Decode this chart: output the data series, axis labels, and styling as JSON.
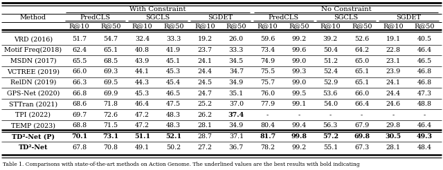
{
  "methods": [
    "VRD (2016)",
    "Motif Freq(2018)",
    "MSDN (2017)",
    "VCTREE (2019)",
    "RelDN (2019)",
    "GPS-Net (2020)",
    "STTran (2021)",
    "TPI (2022)",
    "TEMP (2023)",
    "TD²-Net (P)",
    "TD²-Net"
  ],
  "data": [
    [
      "51.7",
      "54.7",
      "32.4",
      "33.3",
      "19.2",
      "26.0",
      "59.6",
      "99.2",
      "39.2",
      "52.6",
      "19.1",
      "40.5"
    ],
    [
      "62.4",
      "65.1",
      "40.8",
      "41.9",
      "23.7",
      "33.3",
      "73.4",
      "99.6",
      "50.4",
      "64.2",
      "22.8",
      "46.4"
    ],
    [
      "65.5",
      "68.5",
      "43.9",
      "45.1",
      "24.1",
      "34.5",
      "74.9",
      "99.0",
      "51.2",
      "65.0",
      "23.1",
      "46.5"
    ],
    [
      "66.0",
      "69.3",
      "44.1",
      "45.3",
      "24.4",
      "34.7",
      "75.5",
      "99.3",
      "52.4",
      "65.1",
      "23.9",
      "46.8"
    ],
    [
      "66.3",
      "69.5",
      "44.3",
      "45.4",
      "24.5",
      "34.9",
      "75.7",
      "99.0",
      "52.9",
      "65.1",
      "24.1",
      "46.8"
    ],
    [
      "66.8",
      "69.9",
      "45.3",
      "46.5",
      "24.7",
      "35.1",
      "76.0",
      "99.5",
      "53.6",
      "66.0",
      "24.4",
      "47.3"
    ],
    [
      "68.6",
      "71.8",
      "46.4",
      "47.5",
      "25.2",
      "37.0",
      "77.9",
      "99.1",
      "54.0",
      "66.4",
      "24.6",
      "48.8"
    ],
    [
      "69.7",
      "72.6",
      "47.2",
      "48.3",
      "26.2",
      "37.4",
      "-",
      "-",
      "-",
      "-",
      "-",
      "-"
    ],
    [
      "68.8",
      "71.5",
      "47.2",
      "48.3",
      "28.1",
      "34.9",
      "80.4",
      "99.4",
      "56.3",
      "67.9",
      "29.8",
      "46.4"
    ],
    [
      "70.1",
      "73.1",
      "51.1",
      "52.1",
      "28.7",
      "37.1",
      "81.7",
      "99.8",
      "57.2",
      "69.8",
      "30.5",
      "49.3"
    ],
    [
      "67.8",
      "70.8",
      "49.1",
      "50.2",
      "27.2",
      "36.7",
      "78.2",
      "99.2",
      "55.1",
      "67.3",
      "28.1",
      "48.4"
    ]
  ],
  "bold_data": {
    "7": [
      5
    ],
    "9": [
      0,
      1,
      2,
      3,
      6,
      7,
      8,
      9,
      10,
      11
    ]
  },
  "bold_method_rows": [
    9,
    10
  ],
  "caption": "Table 1. Comparisons with state-of-the-art methods on Action Genome. The underlined values are the best results with bold indicating",
  "bg_color": "#ffffff",
  "font_size": 6.8,
  "header_font_size": 7.0,
  "caption_font_size": 5.5
}
